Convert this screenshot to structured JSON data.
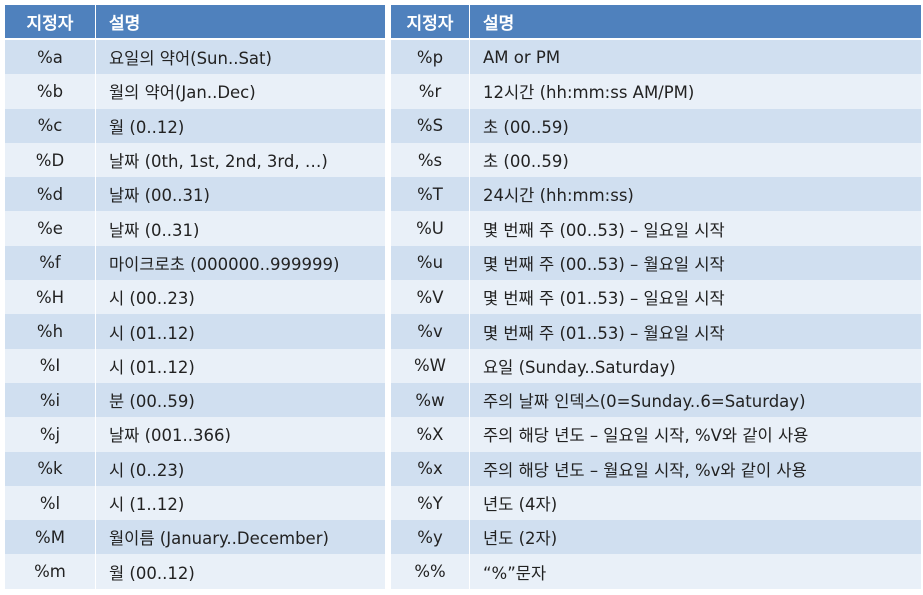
{
  "header": {
    "spec_label": "지정자",
    "desc_label": "설명"
  },
  "left_rows": [
    {
      "spec": "%a",
      "desc": "요일의 약어(Sun..Sat)"
    },
    {
      "spec": "%b",
      "desc": "월의 약어(Jan..Dec)"
    },
    {
      "spec": "%c",
      "desc": "월 (0..12)"
    },
    {
      "spec": "%D",
      "desc": "날짜 (0th, 1st, 2nd, 3rd, …)"
    },
    {
      "spec": "%d",
      "desc": "날짜 (00..31)"
    },
    {
      "spec": "%e",
      "desc": "날짜 (0..31)"
    },
    {
      "spec": "%f",
      "desc": "마이크로초 (000000..999999)"
    },
    {
      "spec": "%H",
      "desc": "시 (00..23)"
    },
    {
      "spec": "%h",
      "desc": "시 (01..12)"
    },
    {
      "spec": "%I",
      "desc": "시 (01..12)"
    },
    {
      "spec": "%i",
      "desc": "분 (00..59)"
    },
    {
      "spec": "%j",
      "desc": "날짜 (001..366)"
    },
    {
      "spec": "%k",
      "desc": "시 (0..23)"
    },
    {
      "spec": "%l",
      "desc": "시 (1..12)"
    },
    {
      "spec": "%M",
      "desc": "월이름 (January..December)"
    },
    {
      "spec": "%m",
      "desc": "월 (00..12)"
    }
  ],
  "right_rows": [
    {
      "spec": "%p",
      "desc": "AM or PM"
    },
    {
      "spec": "%r",
      "desc": "12시간 (hh:mm:ss AM/PM)"
    },
    {
      "spec": "%S",
      "desc": "초 (00..59)"
    },
    {
      "spec": "%s",
      "desc": "초 (00..59)"
    },
    {
      "spec": "%T",
      "desc": "24시간 (hh:mm:ss)"
    },
    {
      "spec": "%U",
      "desc": "몇 번째 주 (00..53) – 일요일 시작"
    },
    {
      "spec": "%u",
      "desc": "몇 번째 주 (00..53) – 월요일 시작"
    },
    {
      "spec": "%V",
      "desc": "몇 번째 주 (01..53) – 일요일 시작"
    },
    {
      "spec": "%v",
      "desc": "몇 번째 주 (01..53) – 월요일 시작"
    },
    {
      "spec": "%W",
      "desc": "요일 (Sunday..Saturday)"
    },
    {
      "spec": "%w",
      "desc": "주의 날짜 인덱스(0=Sunday..6=Saturday)"
    },
    {
      "spec": "%X",
      "desc": "주의 해당 년도 – 일요일 시작, %V와 같이 사용"
    },
    {
      "spec": "%x",
      "desc": "주의 해당 년도 – 월요일 시작, %v와 같이 사용"
    },
    {
      "spec": "%Y",
      "desc": "년도 (4자)"
    },
    {
      "spec": "%y",
      "desc": "년도 (2자)"
    },
    {
      "spec": "%%",
      "desc": "“%”문자"
    }
  ],
  "colors": {
    "header_bg": "#4f81bd",
    "row_odd": "#d0dff0",
    "row_even": "#e9f0f8"
  }
}
